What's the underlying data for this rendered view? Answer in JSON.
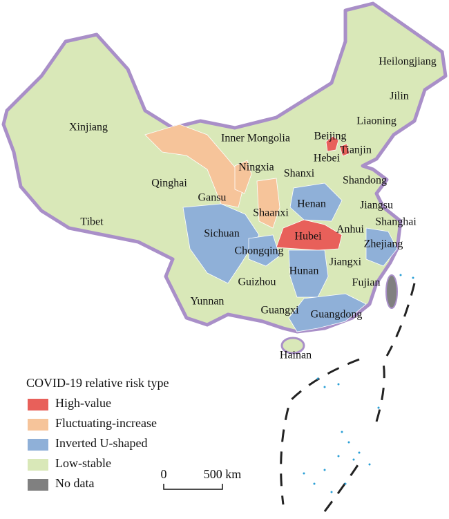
{
  "legend": {
    "title": "COVID-19 relative risk type",
    "items": [
      {
        "label": "High-value",
        "color": "#e8605a",
        "regions": [
          "Hubei",
          "Beijing",
          "Tianjin"
        ]
      },
      {
        "label": "Fluctuating-increase",
        "color": "#f6c49a",
        "regions": [
          "Gansu",
          "Ningxia",
          "Shaanxi"
        ]
      },
      {
        "label": "Inverted U-shaped",
        "color": "#8fb0d8",
        "regions": [
          "Henan",
          "Sichuan",
          "Chongqing",
          "Hunan",
          "Zhejiang",
          "Guangdong"
        ]
      },
      {
        "label": "Low-stable",
        "color": "#d9e8b8",
        "regions": [
          "Xinjiang",
          "Tibet",
          "Qinghai",
          "Inner Mongolia",
          "Heilongjiang",
          "Jilin",
          "Liaoning",
          "Hebei",
          "Shanxi",
          "Shandong",
          "Jiangsu",
          "Anhui",
          "Shanghai",
          "Jiangxi",
          "Fujian",
          "Guizhou",
          "Yunnan",
          "Guangxi",
          "Hainan"
        ]
      },
      {
        "label": "No data",
        "color": "#808080"
      }
    ]
  },
  "scale_bar": {
    "start": "0",
    "end": "500 km"
  }
}
